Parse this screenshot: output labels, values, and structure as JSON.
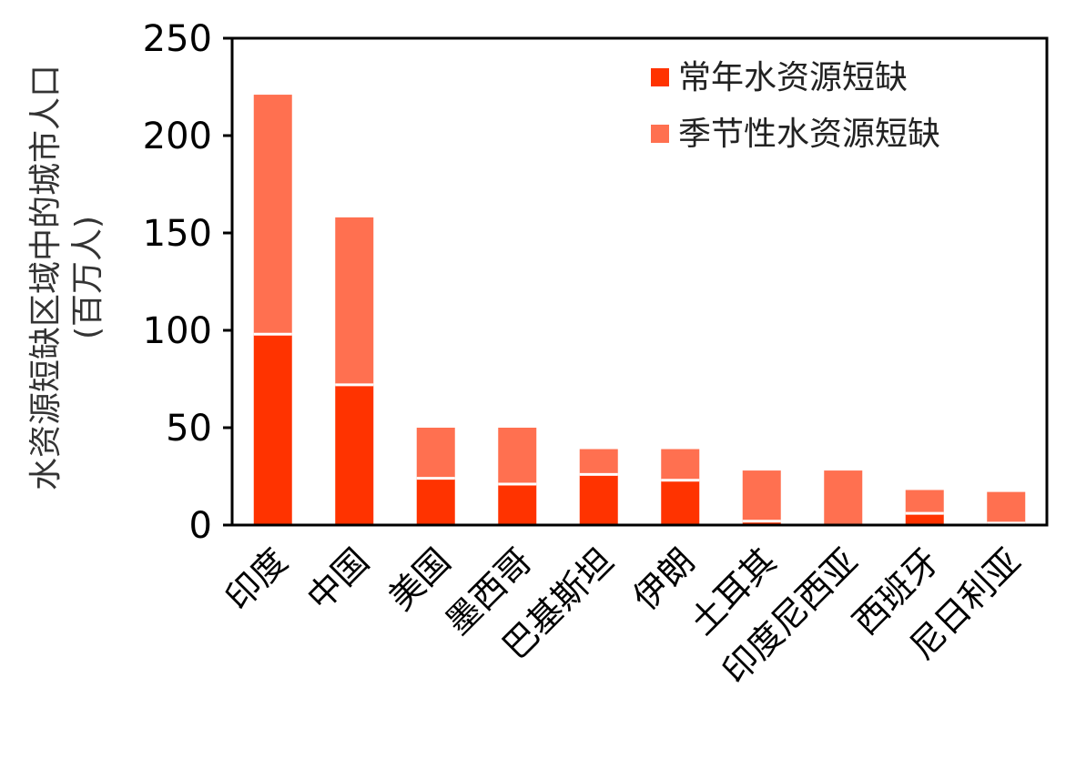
{
  "chart_data": {
    "type": "bar",
    "stacked": true,
    "categories": [
      "印度",
      "中国",
      "美国",
      "墨西哥",
      "巴基斯坦",
      "伊朗",
      "土耳其",
      "印度尼西亚",
      "西班牙",
      "尼日利亚"
    ],
    "series": [
      {
        "name": "常年水资源短缺",
        "color": "#ff3300",
        "values": [
          98,
          72,
          24,
          21,
          26,
          23,
          2,
          0,
          6,
          1
        ]
      },
      {
        "name": "季节性水资源短缺",
        "color": "#ff7050",
        "values": [
          123,
          86,
          26,
          29,
          13,
          16,
          26,
          28,
          12,
          16
        ]
      }
    ],
    "ylabel": "水资源短缺区域中的城市人口",
    "ylabel_unit": "(百万人)",
    "ylim": [
      0,
      250
    ],
    "yticks": [
      0,
      50,
      100,
      150,
      200,
      250
    ],
    "legend_position": "top-right",
    "grid": false
  }
}
